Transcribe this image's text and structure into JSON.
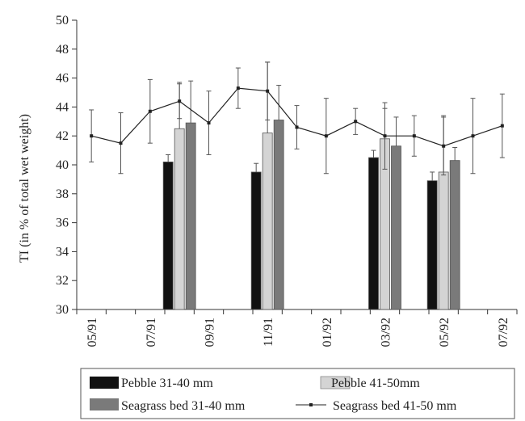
{
  "chart_data": {
    "type": "bar",
    "ylabel": "TI (in % of total wet weight)",
    "xlabel": "",
    "ylim": [
      30,
      50
    ],
    "yticks": [
      30,
      32,
      34,
      36,
      38,
      40,
      42,
      44,
      46,
      48,
      50
    ],
    "x_tick_labels": [
      "05/91",
      "07/91",
      "09/91",
      "11/91",
      "01/92",
      "03/92",
      "05/92",
      "07/92"
    ],
    "x_months": [
      "05/91",
      "06/91",
      "07/91",
      "08/91",
      "09/91",
      "10/91",
      "11/91",
      "12/91",
      "01/92",
      "02/92",
      "03/92",
      "04/92",
      "05/92",
      "06/92",
      "07/92"
    ],
    "bar_groups": [
      "08/91",
      "11/91",
      "03/92",
      "05/92"
    ],
    "series": [
      {
        "name": "Pebble 31-40 mm",
        "kind": "bar",
        "color": "#111111",
        "values": [
          40.2,
          39.5,
          40.5,
          38.9
        ],
        "err": [
          0.5,
          0.6,
          0.5,
          0.6
        ]
      },
      {
        "name": "Pebble 41-50mm",
        "kind": "bar",
        "color": "#d4d4d4",
        "values": [
          42.5,
          42.2,
          41.8,
          39.5
        ],
        "err": [
          3.2,
          4.9,
          2.1,
          3.9
        ]
      },
      {
        "name": "Seagrass bed 31-40 mm",
        "kind": "bar",
        "color": "#7a7a7a",
        "values": [
          42.9,
          43.1,
          41.3,
          40.3
        ],
        "err": [
          2.9,
          2.4,
          2.0,
          0.9
        ]
      },
      {
        "name": "Seagrass bed 41-50 mm",
        "kind": "line",
        "color": "#222222",
        "x": [
          "05/91",
          "06/91",
          "07/91",
          "08/91",
          "09/91",
          "10/91",
          "11/91",
          "12/91",
          "01/92",
          "02/92",
          "03/92",
          "04/92",
          "05/92",
          "06/92",
          "07/92"
        ],
        "values": [
          42.0,
          41.5,
          43.7,
          44.4,
          42.9,
          45.3,
          45.1,
          42.6,
          42.0,
          43.0,
          42.0,
          42.0,
          41.3,
          42.0,
          42.7
        ],
        "err": [
          1.8,
          2.1,
          2.2,
          1.2,
          2.2,
          1.4,
          2.0,
          1.5,
          2.6,
          0.9,
          2.3,
          1.4,
          2.0,
          2.6,
          2.2
        ]
      }
    ],
    "legend_position": "bottom",
    "grid": false
  }
}
